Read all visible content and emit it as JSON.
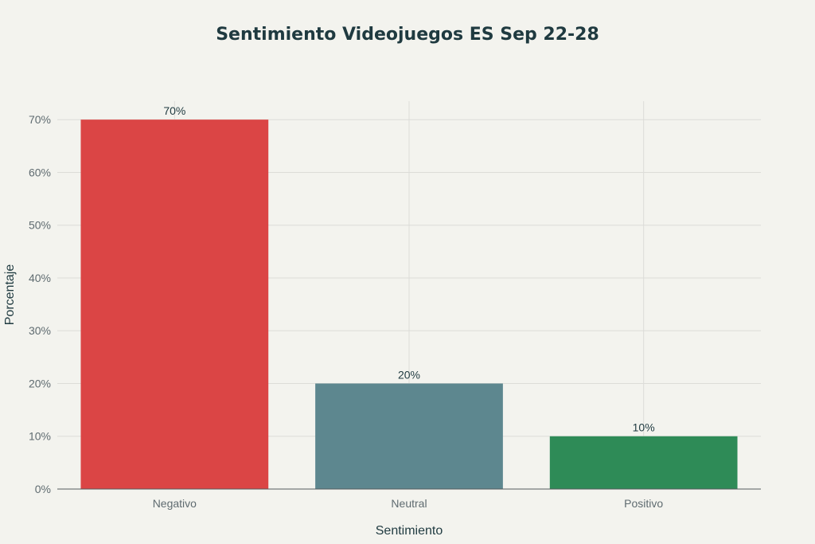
{
  "chart_data": {
    "type": "bar",
    "title": "Sentimiento Videojuegos ES Sep 22-28",
    "xlabel": "Sentimiento",
    "ylabel": "Porcentaje",
    "categories": [
      "Negativo",
      "Neutral",
      "Positivo"
    ],
    "values": [
      70,
      20,
      10
    ],
    "data_labels": [
      "70%",
      "20%",
      "10%"
    ],
    "colors": [
      "#db4545",
      "#5d878f",
      "#2e8b57"
    ],
    "ylim": [
      0,
      73.5
    ],
    "yticks": [
      0,
      10,
      20,
      30,
      40,
      50,
      60,
      70
    ],
    "ytick_labels": [
      "0%",
      "10%",
      "20%",
      "30%",
      "40%",
      "50%",
      "60%",
      "70%"
    ],
    "grid": true,
    "legend": "none"
  }
}
